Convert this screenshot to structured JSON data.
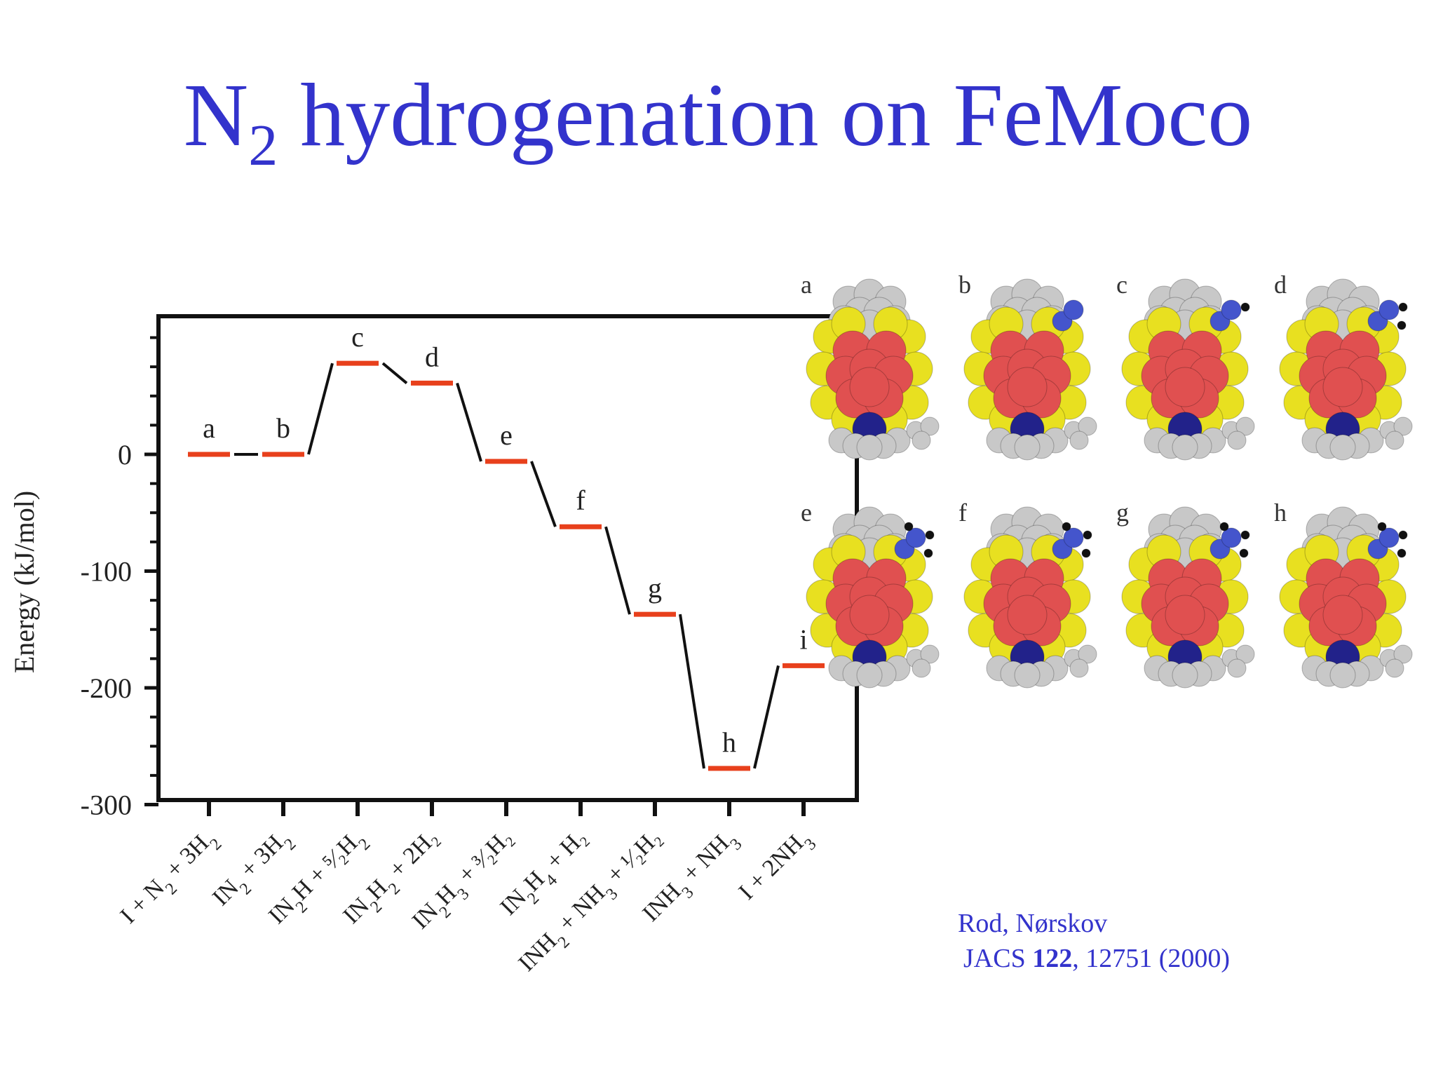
{
  "title": {
    "main": "N",
    "sub": "2",
    "rest": " hydrogenation on FeMoco"
  },
  "chart_data": {
    "type": "line",
    "ylabel": "Energy (kJ/mol)",
    "ylim": [
      -300,
      120
    ],
    "yticks": [
      0,
      -100,
      -200,
      -300
    ],
    "ytick_labels": [
      "0",
      "-100",
      "-200",
      "-300"
    ],
    "states": [
      {
        "label": "a",
        "energy": 0
      },
      {
        "label": "b",
        "energy": 0
      },
      {
        "label": "c",
        "energy": 78
      },
      {
        "label": "d",
        "energy": 61
      },
      {
        "label": "e",
        "energy": -6
      },
      {
        "label": "f",
        "energy": -62
      },
      {
        "label": "g",
        "energy": -137
      },
      {
        "label": "h",
        "energy": -269
      },
      {
        "label": "i",
        "energy": -181
      }
    ],
    "categories": [
      {
        "pre": "I + N",
        "sub": "2",
        "post": " + 3H",
        "sub2": "2",
        "rest": ""
      },
      {
        "pre": "IN",
        "sub": "2",
        "post": " + 3H",
        "sub2": "2",
        "rest": ""
      },
      {
        "pre": "IN",
        "sub": "2",
        "post": "H + ⁵⁄₂H",
        "sub2": "2",
        "rest": ""
      },
      {
        "pre": "IN",
        "sub": "2",
        "post": "H",
        "sub2": "2",
        "rest": " + 2H₂"
      },
      {
        "pre": "IN",
        "sub": "2",
        "post": "H",
        "sub2": "3",
        "rest": " + ³⁄₂H₂"
      },
      {
        "pre": "IN",
        "sub": "2",
        "post": "H",
        "sub2": "4",
        "rest": " + H₂"
      },
      {
        "pre": "INH",
        "sub": "2",
        "post": " + NH",
        "sub2": "3",
        "rest": " + ¹⁄₂H₂"
      },
      {
        "pre": "INH",
        "sub": "3",
        "post": " + NH",
        "sub2": "3",
        "rest": ""
      },
      {
        "pre": "I + 2NH",
        "sub": "3",
        "post": "",
        "sub2": "",
        "rest": ""
      }
    ],
    "level_color": "#e8401c",
    "connector_color": "#111111",
    "grid": false
  },
  "structures": {
    "labels": [
      "a",
      "b",
      "c",
      "d",
      "e",
      "f",
      "g",
      "h"
    ],
    "colors": {
      "iron": "#e05050",
      "sulfur": "#e8e020",
      "carbon": "#c8c8c8",
      "nitrogen_core": "#22228a",
      "nitrogen": "#4455cc",
      "hydrogen": "#111111"
    }
  },
  "citation": {
    "authors": "Rod, Nørskov",
    "journal": "JACS",
    "volume": "122",
    "rest": ",  12751 (2000)"
  }
}
